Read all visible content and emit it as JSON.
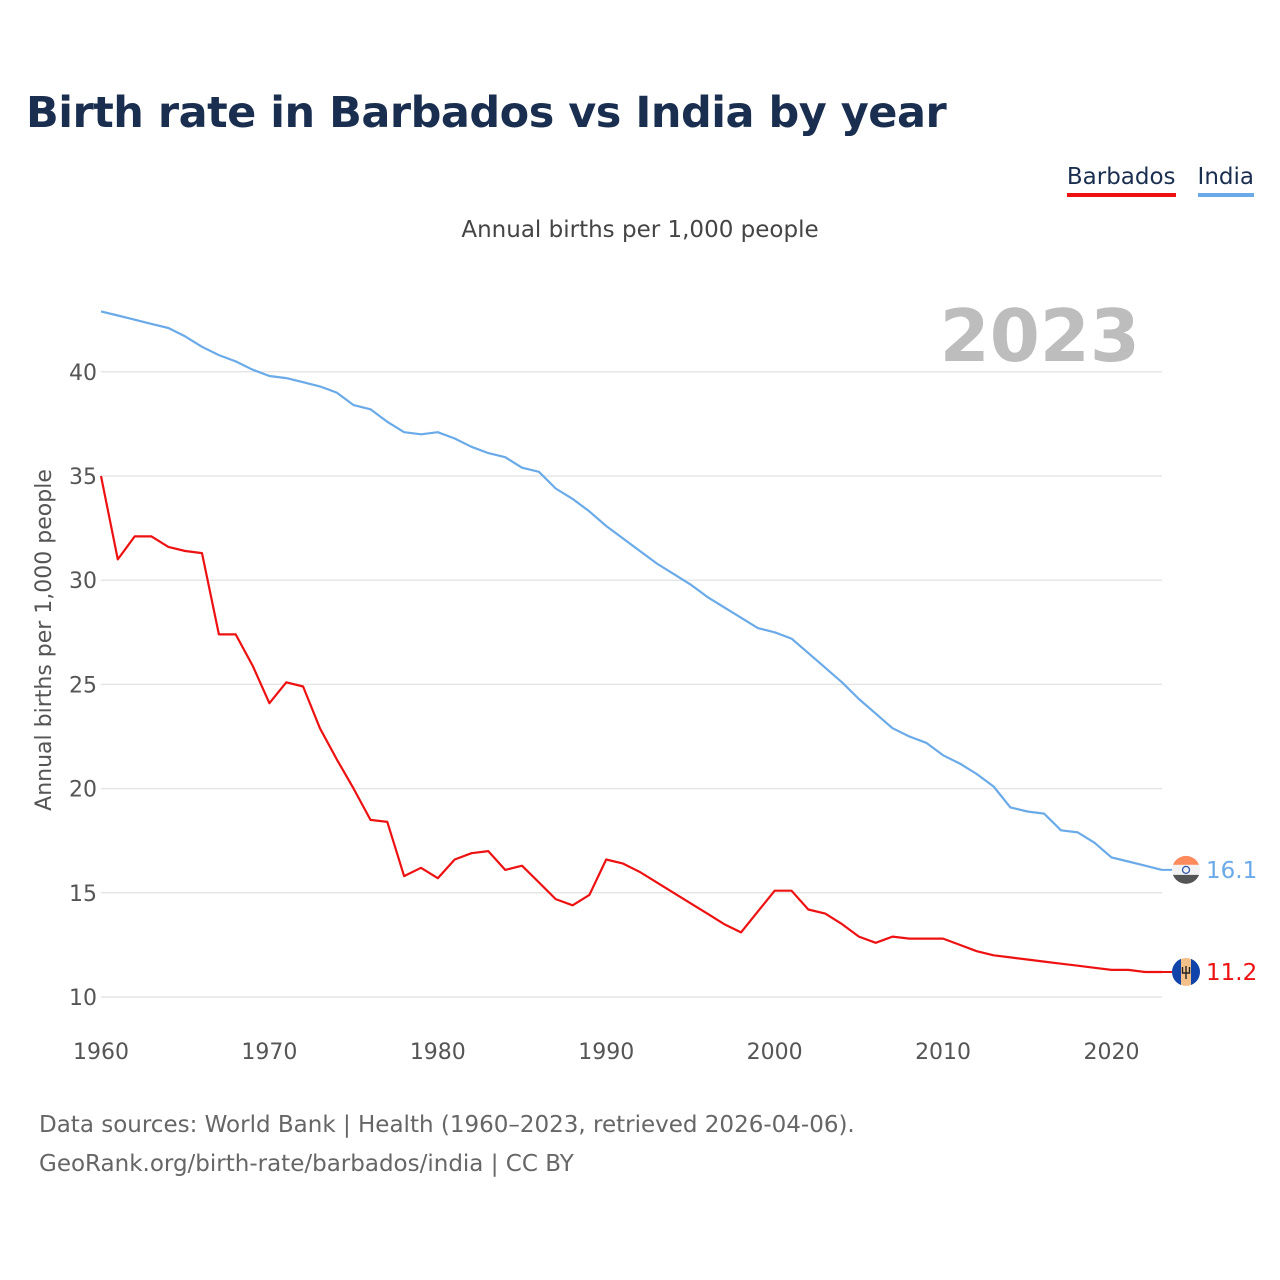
{
  "title": "Birth rate in Barbados vs India by year",
  "subtitle": "Annual births per 1,000 people",
  "legend": [
    {
      "name": "Barbados",
      "color": "#ee1111"
    },
    {
      "name": "India",
      "color": "#6aaae8"
    }
  ],
  "source_line1": "Data sources: World Bank | Health (1960–2023, retrieved 2026-04-06).",
  "source_line2": "GeoRank.org/birth-rate/barbados/india | CC BY",
  "chart_data": {
    "type": "line",
    "title": "Birth rate in Barbados vs India by year",
    "ylabel": "Annual births per 1,000 people",
    "xlabel": "",
    "year_label": "2023",
    "xlim": [
      1960,
      2023
    ],
    "ylim": [
      10,
      43
    ],
    "x_ticks": [
      1960,
      1970,
      1980,
      1990,
      2000,
      2010,
      2020
    ],
    "y_ticks": [
      10,
      15,
      20,
      25,
      30,
      35,
      40
    ],
    "grid": true,
    "x": [
      1960,
      1961,
      1962,
      1963,
      1964,
      1965,
      1966,
      1967,
      1968,
      1969,
      1970,
      1971,
      1972,
      1973,
      1974,
      1975,
      1976,
      1977,
      1978,
      1979,
      1980,
      1981,
      1982,
      1983,
      1984,
      1985,
      1986,
      1987,
      1988,
      1989,
      1990,
      1991,
      1992,
      1993,
      1994,
      1995,
      1996,
      1997,
      1998,
      1999,
      2000,
      2001,
      2002,
      2003,
      2004,
      2005,
      2006,
      2007,
      2008,
      2009,
      2010,
      2011,
      2012,
      2013,
      2014,
      2015,
      2016,
      2017,
      2018,
      2019,
      2020,
      2021,
      2022,
      2023
    ],
    "series": [
      {
        "name": "Barbados",
        "color": "#ee1111",
        "end_label": "11.2",
        "values": [
          35.0,
          31.0,
          32.1,
          32.1,
          31.6,
          31.4,
          31.3,
          27.4,
          27.4,
          25.9,
          24.1,
          25.1,
          24.9,
          22.9,
          21.4,
          20.0,
          18.5,
          18.4,
          15.8,
          16.2,
          15.7,
          16.6,
          16.9,
          17.0,
          16.1,
          16.3,
          15.5,
          14.7,
          14.4,
          14.9,
          16.6,
          16.4,
          16.0,
          15.5,
          15.0,
          14.5,
          14.0,
          13.5,
          13.1,
          14.1,
          15.1,
          15.1,
          14.2,
          14.0,
          13.5,
          12.9,
          12.6,
          12.9,
          12.8,
          12.8,
          12.8,
          12.5,
          12.2,
          12.0,
          11.9,
          11.8,
          11.7,
          11.6,
          11.5,
          11.4,
          11.3,
          11.3,
          11.2,
          11.2
        ]
      },
      {
        "name": "India",
        "color": "#6aaae8",
        "end_label": "16.1",
        "values": [
          42.9,
          42.7,
          42.5,
          42.3,
          42.1,
          41.7,
          41.2,
          40.8,
          40.5,
          40.1,
          39.8,
          39.7,
          39.5,
          39.3,
          39.0,
          38.4,
          38.2,
          37.6,
          37.1,
          37.0,
          37.1,
          36.8,
          36.4,
          36.1,
          35.9,
          35.4,
          35.2,
          34.4,
          33.9,
          33.3,
          32.6,
          32.0,
          31.4,
          30.8,
          30.3,
          29.8,
          29.2,
          28.7,
          28.2,
          27.7,
          27.5,
          27.2,
          26.5,
          25.8,
          25.1,
          24.3,
          23.6,
          22.9,
          22.5,
          22.2,
          21.6,
          21.2,
          20.7,
          20.1,
          19.1,
          18.9,
          18.8,
          18.0,
          17.9,
          17.4,
          16.7,
          16.5,
          16.3,
          16.1
        ]
      }
    ]
  }
}
